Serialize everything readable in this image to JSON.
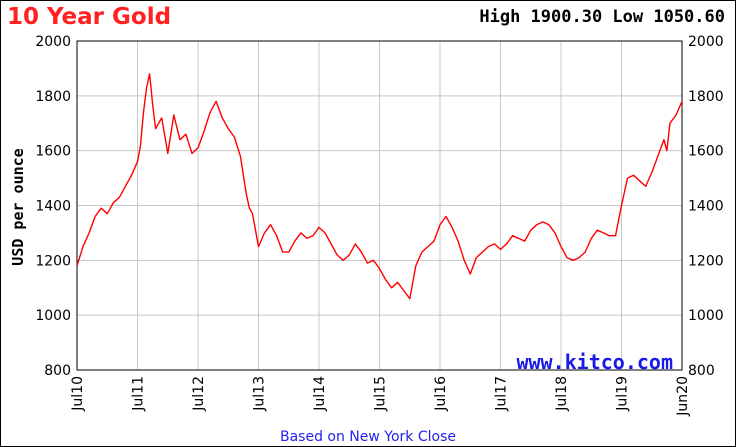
{
  "header": {
    "title": "10 Year Gold",
    "high_low": "High 1900.30 Low 1050.60"
  },
  "footer": {
    "note": "Based on New York Close"
  },
  "watermark": "www.kitco.com",
  "colors": {
    "title": "#ff2020",
    "series": "#ff0000",
    "watermark": "#1a1ae8",
    "grid": "#c8c8c8"
  },
  "chart_data": {
    "type": "line",
    "title": "10 Year Gold",
    "ylabel": "USD per ounce",
    "ylim": [
      800,
      2000
    ],
    "yticks": [
      800,
      1000,
      1200,
      1400,
      1600,
      1800,
      2000
    ],
    "xticks": [
      "Jul10",
      "Jul11",
      "Jul12",
      "Jul13",
      "Jul14",
      "Jul15",
      "Jul16",
      "Jul17",
      "Jul18",
      "Jul19",
      "Jun20"
    ],
    "x_start": "Jul10",
    "x_end": "Jun20",
    "grid": true,
    "series": [
      {
        "name": "",
        "x": [
          2010.5,
          2010.6,
          2010.7,
          2010.8,
          2010.9,
          2011.0,
          2011.1,
          2011.2,
          2011.3,
          2011.4,
          2011.5,
          2011.55,
          2011.6,
          2011.65,
          2011.7,
          2011.75,
          2011.8,
          2011.9,
          2012.0,
          2012.1,
          2012.2,
          2012.3,
          2012.4,
          2012.5,
          2012.6,
          2012.7,
          2012.8,
          2012.9,
          2013.0,
          2013.1,
          2013.2,
          2013.3,
          2013.35,
          2013.4,
          2013.5,
          2013.6,
          2013.7,
          2013.8,
          2013.9,
          2014.0,
          2014.1,
          2014.2,
          2014.3,
          2014.4,
          2014.5,
          2014.6,
          2014.7,
          2014.8,
          2014.9,
          2015.0,
          2015.1,
          2015.2,
          2015.3,
          2015.4,
          2015.5,
          2015.6,
          2015.7,
          2015.8,
          2015.9,
          2016.0,
          2016.1,
          2016.2,
          2016.3,
          2016.4,
          2016.5,
          2016.6,
          2016.7,
          2016.8,
          2016.9,
          2017.0,
          2017.1,
          2017.2,
          2017.3,
          2017.4,
          2017.5,
          2017.6,
          2017.7,
          2017.8,
          2017.9,
          2018.0,
          2018.1,
          2018.2,
          2018.3,
          2018.4,
          2018.5,
          2018.6,
          2018.7,
          2018.8,
          2018.9,
          2019.0,
          2019.1,
          2019.2,
          2019.3,
          2019.4,
          2019.5,
          2019.6,
          2019.7,
          2019.8,
          2019.9,
          2020.0,
          2020.1,
          2020.2,
          2020.25,
          2020.3,
          2020.4,
          2020.5
        ],
        "values": [
          1180,
          1250,
          1300,
          1360,
          1390,
          1370,
          1410,
          1430,
          1470,
          1510,
          1560,
          1620,
          1740,
          1830,
          1880,
          1770,
          1680,
          1720,
          1590,
          1730,
          1640,
          1660,
          1590,
          1610,
          1670,
          1740,
          1780,
          1720,
          1680,
          1650,
          1580,
          1440,
          1390,
          1370,
          1250,
          1300,
          1330,
          1290,
          1230,
          1230,
          1270,
          1300,
          1280,
          1290,
          1320,
          1300,
          1260,
          1220,
          1200,
          1220,
          1260,
          1230,
          1190,
          1200,
          1170,
          1130,
          1100,
          1120,
          1090,
          1060,
          1180,
          1230,
          1250,
          1270,
          1330,
          1360,
          1320,
          1270,
          1200,
          1150,
          1210,
          1230,
          1250,
          1260,
          1240,
          1260,
          1290,
          1280,
          1270,
          1310,
          1330,
          1340,
          1330,
          1300,
          1250,
          1210,
          1200,
          1210,
          1230,
          1280,
          1310,
          1300,
          1290,
          1290,
          1400,
          1500,
          1510,
          1490,
          1470,
          1520,
          1580,
          1640,
          1600,
          1700,
          1730,
          1780
        ]
      }
    ]
  }
}
